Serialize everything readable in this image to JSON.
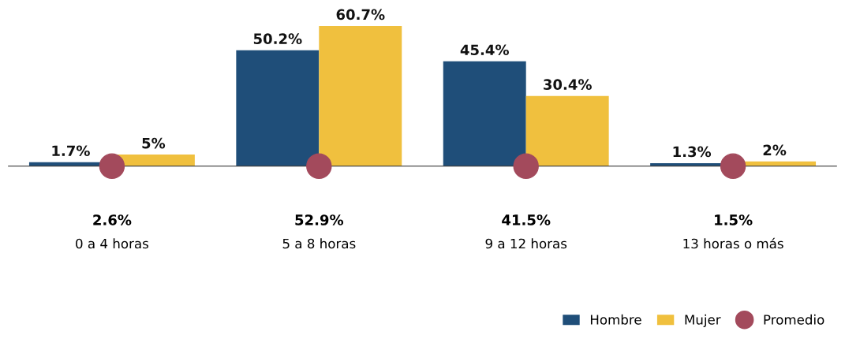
{
  "chart_data": {
    "type": "bar",
    "categories": [
      "0 a 4 horas",
      "5 a 8 horas",
      "9 a 12 horas",
      "13 horas o más"
    ],
    "series": [
      {
        "name": "Hombre",
        "color": "#1f4e79",
        "values": [
          1.7,
          50.2,
          45.4,
          1.3
        ],
        "value_labels": [
          "1.7%",
          "50.2%",
          "45.4%",
          "1.3%"
        ]
      },
      {
        "name": "Mujer",
        "color": "#f0c03e",
        "values": [
          5,
          60.7,
          30.4,
          2
        ],
        "value_labels": [
          "5%",
          "60.7%",
          "30.4%",
          "2%"
        ]
      },
      {
        "name": "Promedio",
        "type": "scatter",
        "color": "#a34a5c",
        "values": [
          0,
          0,
          0,
          0
        ]
      }
    ],
    "annotations": [
      "2.6%",
      "52.9%",
      "41.5%",
      "1.5%"
    ],
    "tick_labels": "x",
    "legend": "bottom right",
    "grid": false
  }
}
